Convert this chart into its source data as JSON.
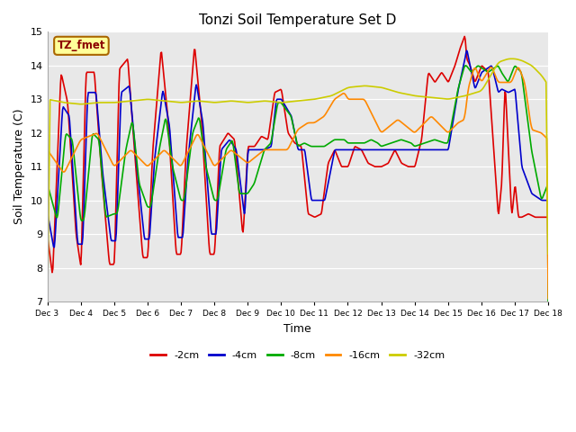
{
  "title": "Tonzi Soil Temperature Set D",
  "xlabel": "Time",
  "ylabel": "Soil Temperature (C)",
  "ylim": [
    7.0,
    15.0
  ],
  "yticks": [
    7.0,
    8.0,
    9.0,
    10.0,
    11.0,
    12.0,
    13.0,
    14.0,
    15.0
  ],
  "xtick_labels": [
    "Dec 3",
    "Dec 4",
    "Dec 5",
    "Dec 6",
    "Dec 7",
    "Dec 8",
    "Dec 9",
    "Dec 10",
    "Dec 11",
    "Dec 12",
    "Dec 13",
    "Dec 14",
    "Dec 15",
    "Dec 16",
    "Dec 17",
    "Dec 18"
  ],
  "series_colors": [
    "#dd0000",
    "#0000cc",
    "#00aa00",
    "#ff8800",
    "#cccc00"
  ],
  "series_labels": [
    "-2cm",
    "-4cm",
    "-8cm",
    "-16cm",
    "-32cm"
  ],
  "legend_label": "TZ_fmet",
  "legend_box_color": "#ffff99",
  "legend_box_border": "#cc0000",
  "bg_color": "#e8e8e8",
  "line_width": 1.2
}
